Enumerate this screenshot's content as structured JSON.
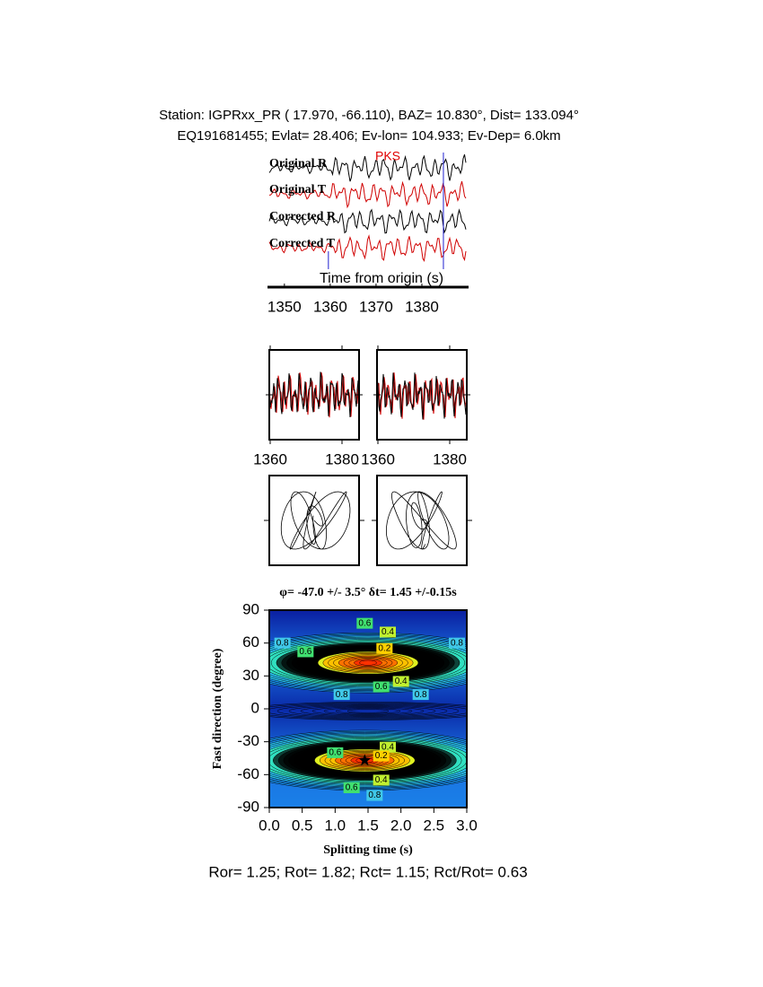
{
  "header": {
    "line1": "Station: IGPRxx_PR (  17.970,  -66.110), BAZ=   10.830°, Dist=  133.094°",
    "line2": "EQ191681455; Evlat=  28.406; Ev-lon= 104.933; Ev-Dep=  6.0km"
  },
  "traces": {
    "labels": [
      "Original R",
      "Original T",
      "Corrected R",
      "Corrected T"
    ],
    "phase": "PKS",
    "xlabel": "Time from origin (s)",
    "xlim": [
      1346.7,
      1389.8
    ],
    "xticks": [
      1350,
      1360,
      1370,
      1380
    ],
    "markers": [
      1359.6,
      1384.7
    ]
  },
  "waveforms": {
    "xlim": [
      1360,
      1385
    ],
    "xticks": [
      1360,
      1380
    ]
  },
  "grid_search": {
    "type": "contour",
    "title": "φ= -47.0 +/- 3.5° δt= 1.45 +/-0.15s",
    "xlabel": "Splitting time (s)",
    "ylabel": "Fast direction (degree)",
    "xlim": [
      0,
      3
    ],
    "xticks": [
      {
        "value": 0,
        "label": "0.0"
      },
      0.5,
      {
        "value": 1,
        "label": "1.0"
      },
      1.5,
      {
        "value": 2,
        "label": "2.0"
      },
      2.5,
      {
        "value": 3,
        "label": "3.0"
      }
    ],
    "ylim": [
      -90,
      90
    ],
    "yticks": [
      90,
      60,
      30,
      0,
      -30,
      -60,
      -90
    ],
    "best": {
      "dt": 1.45,
      "phi": -47.0
    },
    "contour_labels": [
      0.8,
      0.6,
      0.4,
      0.2,
      0.6,
      0.4,
      0.8,
      0.8,
      0.8,
      0.6,
      0.4,
      0.2,
      0.6,
      0.4,
      0.8,
      0.6
    ]
  },
  "footer": "Ror= 1.25; Rot= 1.82; Rct= 1.15; Rct/Rot= 0.63"
}
